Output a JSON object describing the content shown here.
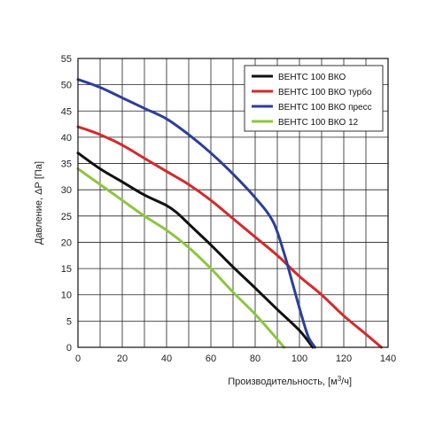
{
  "chart_data": {
    "type": "line",
    "xlabel_main": "Производительность, [м",
    "xlabel_sup": "3",
    "xlabel_tail": "/ч]",
    "ylabel": "Давление, ΔР [Па]",
    "xlim": [
      0,
      140
    ],
    "ylim": [
      0,
      55
    ],
    "xticks": [
      0,
      20,
      40,
      60,
      80,
      100,
      120,
      140
    ],
    "yticks": [
      0,
      5,
      10,
      15,
      20,
      25,
      30,
      35,
      40,
      45,
      50,
      55
    ],
    "grid": true,
    "x_minor_step": 10,
    "legend_position": "top-right",
    "series": [
      {
        "name": "ВЕНТС 100 ВКО",
        "color": "#111111",
        "points": [
          [
            0,
            37
          ],
          [
            10,
            34
          ],
          [
            20,
            31.5
          ],
          [
            30,
            29
          ],
          [
            40,
            27
          ],
          [
            45,
            25.5
          ],
          [
            50,
            23.5
          ],
          [
            60,
            19.5
          ],
          [
            70,
            15.3
          ],
          [
            80,
            11.3
          ],
          [
            90,
            7.2
          ],
          [
            100,
            3.2
          ],
          [
            106,
            0
          ]
        ]
      },
      {
        "name": "ВЕНТС 100 ВКО турбо",
        "color": "#d42a2a",
        "points": [
          [
            0,
            42
          ],
          [
            10,
            40.5
          ],
          [
            20,
            38.5
          ],
          [
            30,
            36
          ],
          [
            40,
            33.5
          ],
          [
            50,
            31
          ],
          [
            60,
            28
          ],
          [
            70,
            24.5
          ],
          [
            80,
            21
          ],
          [
            90,
            17.5
          ],
          [
            100,
            13.5
          ],
          [
            110,
            10
          ],
          [
            120,
            6
          ],
          [
            130,
            2.5
          ],
          [
            137,
            0
          ]
        ]
      },
      {
        "name": "ВЕНТС 100 ВКО пресс",
        "color": "#2b3f9a",
        "points": [
          [
            0,
            51
          ],
          [
            10,
            49.5
          ],
          [
            20,
            47.5
          ],
          [
            30,
            45.5
          ],
          [
            40,
            43.5
          ],
          [
            50,
            40.5
          ],
          [
            60,
            37
          ],
          [
            70,
            33
          ],
          [
            80,
            28.5
          ],
          [
            88,
            24
          ],
          [
            93,
            18
          ],
          [
            97,
            12
          ],
          [
            101,
            6
          ],
          [
            104,
            2
          ],
          [
            107,
            0
          ]
        ]
      },
      {
        "name": "ВЕНТС 100 ВКО 12",
        "color": "#8cc63f",
        "points": [
          [
            0,
            34
          ],
          [
            10,
            31
          ],
          [
            20,
            28
          ],
          [
            30,
            25
          ],
          [
            40,
            22.3
          ],
          [
            50,
            19
          ],
          [
            60,
            15
          ],
          [
            70,
            10.5
          ],
          [
            80,
            6.3
          ],
          [
            88,
            2.5
          ],
          [
            93,
            0
          ]
        ]
      }
    ]
  }
}
